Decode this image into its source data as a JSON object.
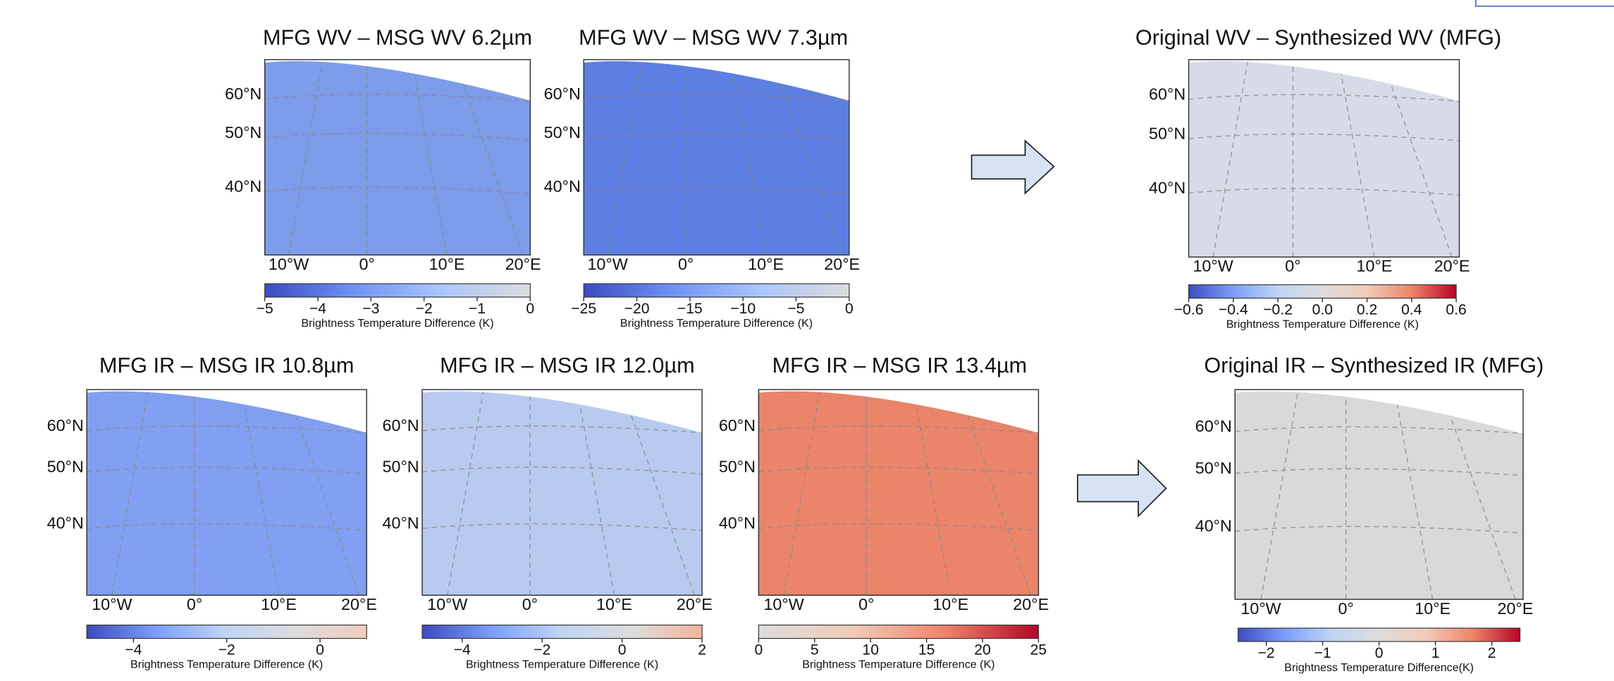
{
  "panels": [
    {
      "title": "MFG WV – MSG WV 6.2µm",
      "fill": "#7d9cea",
      "lat_labels": [
        "60°N",
        "50°N",
        "40°N"
      ],
      "lon_labels": [
        "10°W",
        "0°",
        "10°E",
        "20°E"
      ],
      "colorbar": {
        "label": "Brightness Temperature Difference (K)",
        "lim": [
          -5,
          0
        ],
        "colors": [
          "#3b4cc0",
          "#6f92f3",
          "#aac7fd",
          "#dddcdc"
        ],
        "ticks": [
          {
            "value": -5,
            "label": "−5"
          },
          {
            "value": -4,
            "label": "−4"
          },
          {
            "value": -3,
            "label": "−3"
          },
          {
            "value": -2,
            "label": "−2"
          },
          {
            "value": -1,
            "label": "−1"
          },
          0
        ]
      }
    },
    {
      "title": "MFG WV – MSG WV 7.3µm",
      "fill": "#5d7ee2",
      "lat_labels": [
        "60°N",
        "50°N",
        "40°N"
      ],
      "lon_labels": [
        "10°W",
        "0°",
        "10°E",
        "20°E"
      ],
      "colorbar": {
        "label": "Brightness Temperature Difference (K)",
        "lim": [
          -25,
          0
        ],
        "colors": [
          "#3b4cc0",
          "#6f92f3",
          "#aac7fd",
          "#dddcdc"
        ],
        "ticks": [
          {
            "value": -25,
            "label": "−25"
          },
          {
            "value": -20,
            "label": "−20"
          },
          {
            "value": -15,
            "label": "−15"
          },
          {
            "value": -10,
            "label": "−10"
          },
          {
            "value": -5,
            "label": "−5"
          },
          0
        ]
      }
    },
    {
      "title": "Original WV – Synthesized WV (MFG)",
      "fill": "#d6dbe7",
      "lat_labels": [
        "60°N",
        "50°N",
        "40°N"
      ],
      "lon_labels": [
        "10°W",
        "0°",
        "10°E",
        "20°E"
      ],
      "colorbar": {
        "label": "Brightness Temperature Difference (K)",
        "lim": [
          -0.6,
          0.6
        ],
        "colors": [
          "#3b4cc0",
          "#7b9ff9",
          "#c0d4f5",
          "#dddcdc",
          "#f2cbb7",
          "#ee8468",
          "#b40426"
        ],
        "ticks": [
          {
            "value": -0.6,
            "label": "−0.6"
          },
          {
            "value": -0.4,
            "label": "−0.4"
          },
          {
            "value": -0.2,
            "label": "−0.2"
          },
          {
            "value": 0,
            "label": "0.0"
          },
          0.2,
          0.4,
          0.6
        ]
      }
    },
    {
      "title": "MFG IR – MSG IR 10.8µm",
      "fill": "#819ff0",
      "lat_labels": [
        "60°N",
        "50°N",
        "40°N"
      ],
      "lon_labels": [
        "10°W",
        "0°",
        "10°E",
        "20°E"
      ],
      "colorbar": {
        "label": "Brightness Temperature Difference (K)",
        "lim": [
          -5,
          1
        ],
        "colors": [
          "#3b4cc0",
          "#7b9ff9",
          "#c0d4f5",
          "#dddcdc",
          "#f0cdbb"
        ],
        "ticks": [
          {
            "value": -4,
            "label": "−4"
          },
          {
            "value": -2,
            "label": "−2"
          },
          0
        ]
      }
    },
    {
      "title": "MFG IR – MSG IR 12.0µm",
      "fill": "#b8caef",
      "lat_labels": [
        "60°N",
        "50°N",
        "40°N"
      ],
      "lon_labels": [
        "10°W",
        "0°",
        "10°E",
        "20°E"
      ],
      "colorbar": {
        "label": "Brightness Temperature Difference (K)",
        "lim": [
          -5,
          2
        ],
        "colors": [
          "#3b4cc0",
          "#7b9ff9",
          "#c0d4f5",
          "#dddcdc",
          "#f4b59a"
        ],
        "ticks": [
          {
            "value": -4,
            "label": "−4"
          },
          {
            "value": -2,
            "label": "−2"
          },
          0,
          2
        ]
      }
    },
    {
      "title": "MFG IR – MSG IR 13.4µm",
      "fill": "#e9846a",
      "lat_labels": [
        "60°N",
        "50°N",
        "40°N"
      ],
      "lon_labels": [
        "10°W",
        "0°",
        "10°E",
        "20°E"
      ],
      "colorbar": {
        "label": "Brightness Temperature Difference (K)",
        "lim": [
          0,
          25
        ],
        "colors": [
          "#dddcdc",
          "#f2cbb7",
          "#ee8468",
          "#b40426"
        ],
        "ticks": [
          0,
          5,
          10,
          15,
          20,
          25
        ]
      }
    },
    {
      "title": "Original IR – Synthesized IR (MFG)",
      "fill": "#d9d9dc",
      "lat_labels": [
        "60°N",
        "50°N",
        "40°N"
      ],
      "lon_labels": [
        "10°W",
        "0°",
        "10°E",
        "20°E"
      ],
      "colorbar": {
        "label": "Brightness Temperature Difference(K)",
        "lim": [
          -2.5,
          2.5
        ],
        "colors": [
          "#3b4cc0",
          "#7b9ff9",
          "#c0d4f5",
          "#dddcdc",
          "#f2cbb7",
          "#ee8468",
          "#b40426"
        ],
        "ticks": [
          {
            "value": -2,
            "label": "−2"
          },
          {
            "value": -1,
            "label": "−1"
          },
          0,
          1,
          2
        ]
      }
    }
  ]
}
